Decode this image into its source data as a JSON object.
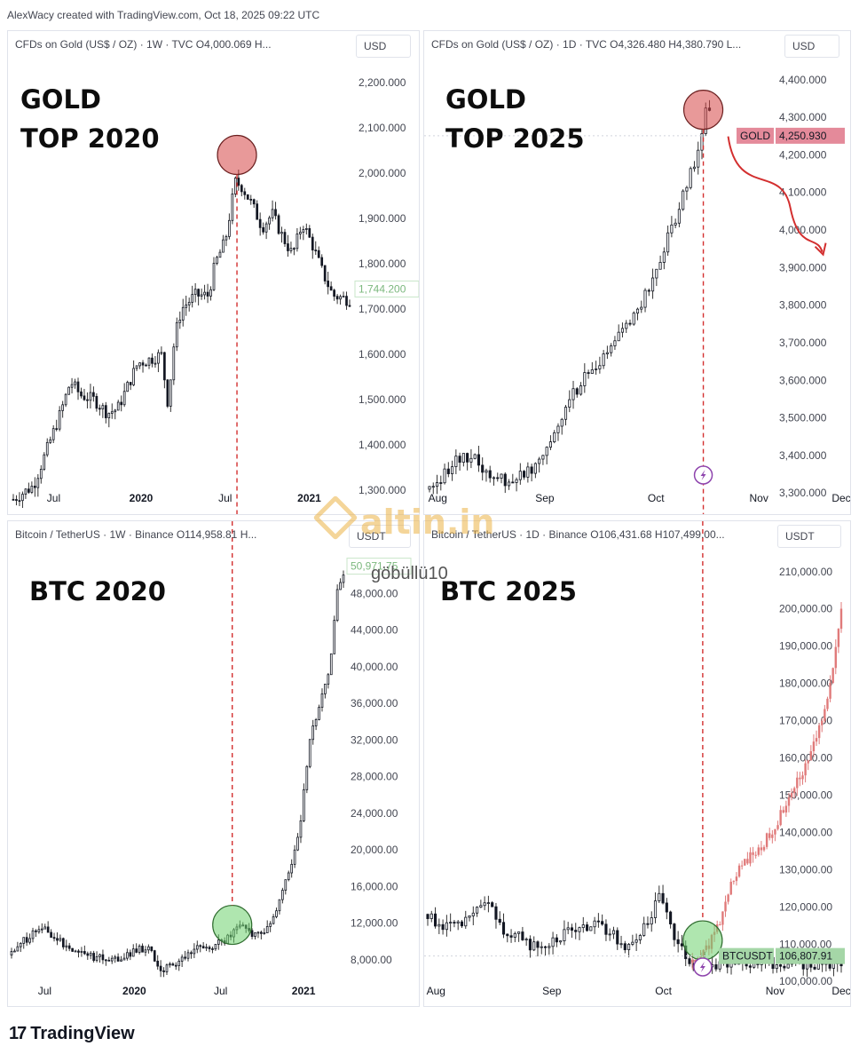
{
  "credit": "AlexWacy created with TradingView.com, Oct 18, 2025 09:22 UTC",
  "brand": {
    "logo_mark": "17",
    "name": "TradingView"
  },
  "watermark": {
    "name": "altin.in",
    "sub": "göbüllü10"
  },
  "colors": {
    "up": "#131722",
    "wick": "#333333",
    "proj": "#e07a7a",
    "dashed": "#d32f2f",
    "red_circle": "rgba(214,70,70,0.55)",
    "green_circle": "rgba(110,210,110,0.55)",
    "gold_tag": "#e48a9a",
    "btc_tag": "#a5d6a7",
    "last_tag": "#c8e6c9"
  },
  "chart_data": [
    {
      "id": "gold2020",
      "type": "candlestick",
      "header": "CFDs on Gold (US$ / OZ) · 1W · TVC  O4,000.069  H...",
      "unit": "USD",
      "annotation": [
        "GOLD",
        "TOP 2020"
      ],
      "y_ticks": [
        "2,200.000",
        "2,100.000",
        "2,000.000",
        "1,900.000",
        "1,800.000",
        "1,700.000",
        "1,600.000",
        "1,500.000",
        "1,400.000",
        "1,300.000"
      ],
      "y_tick_values": [
        2200,
        2100,
        2000,
        1900,
        1800,
        1700,
        1600,
        1500,
        1400,
        1300
      ],
      "ylim": [
        1265,
        2235
      ],
      "last_price_label": "1,744.200",
      "last_price": 1744.2,
      "x_ticks": [
        {
          "label": "Jul",
          "t": 0.12
        },
        {
          "label": "2020",
          "t": 0.38,
          "bold": true
        },
        {
          "label": "Jul",
          "t": 0.63
        },
        {
          "label": "2021",
          "t": 0.88,
          "bold": true
        }
      ],
      "path": [
        [
          0,
          1280
        ],
        [
          0.06,
          1310
        ],
        [
          0.1,
          1390
        ],
        [
          0.14,
          1470
        ],
        [
          0.17,
          1540
        ],
        [
          0.2,
          1510
        ],
        [
          0.24,
          1500
        ],
        [
          0.28,
          1470
        ],
        [
          0.31,
          1480
        ],
        [
          0.34,
          1530
        ],
        [
          0.37,
          1580
        ],
        [
          0.41,
          1590
        ],
        [
          0.44,
          1600
        ],
        [
          0.46,
          1490
        ],
        [
          0.48,
          1640
        ],
        [
          0.5,
          1700
        ],
        [
          0.54,
          1730
        ],
        [
          0.58,
          1730
        ],
        [
          0.6,
          1800
        ],
        [
          0.63,
          1850
        ],
        [
          0.66,
          1980
        ],
        [
          0.68,
          1970
        ],
        [
          0.71,
          1930
        ],
        [
          0.74,
          1880
        ],
        [
          0.77,
          1910
        ],
        [
          0.8,
          1860
        ],
        [
          0.83,
          1820
        ],
        [
          0.86,
          1890
        ],
        [
          0.89,
          1840
        ],
        [
          0.92,
          1780
        ],
        [
          0.95,
          1730
        ],
        [
          1.0,
          1720
        ]
      ],
      "peak_t": 0.665,
      "peak_price": 2040
    },
    {
      "id": "gold2025",
      "type": "candlestick",
      "header": "CFDs on Gold (US$ / OZ) · 1D · TVC  O4,326.480  H4,380.790  L...",
      "unit": "USD",
      "annotation": [
        "GOLD",
        "TOP 2025"
      ],
      "y_ticks": [
        "4,400.000",
        "4,300.000",
        "4,200.000",
        "4,100.000",
        "4,000.000",
        "3,900.000",
        "3,800.000",
        "3,700.000",
        "3,600.000",
        "3,500.000",
        "3,400.000",
        "3,300.000"
      ],
      "y_tick_values": [
        4400,
        4300,
        4200,
        4100,
        4000,
        3900,
        3800,
        3700,
        3600,
        3500,
        3400,
        3300
      ],
      "ylim": [
        3265,
        4435
      ],
      "tag": {
        "symbol": "GOLD",
        "price_label": "4,250.930",
        "price": 4250.93
      },
      "x_ticks": [
        {
          "label": "Aug",
          "t": 0.02
        },
        {
          "label": "Sep",
          "t": 0.28
        },
        {
          "label": "Oct",
          "t": 0.55
        },
        {
          "label": "Nov",
          "t": 0.8
        },
        {
          "label": "Dec",
          "t": 1.0
        }
      ],
      "path": [
        [
          0,
          3310
        ],
        [
          0.06,
          3380
        ],
        [
          0.1,
          3400
        ],
        [
          0.14,
          3350
        ],
        [
          0.2,
          3330
        ],
        [
          0.25,
          3370
        ],
        [
          0.3,
          3450
        ],
        [
          0.33,
          3530
        ],
        [
          0.37,
          3600
        ],
        [
          0.42,
          3650
        ],
        [
          0.46,
          3720
        ],
        [
          0.5,
          3780
        ],
        [
          0.54,
          3860
        ],
        [
          0.58,
          3980
        ],
        [
          0.62,
          4100
        ],
        [
          0.65,
          4200
        ],
        [
          0.67,
          4320
        ]
      ],
      "extent_t": 0.68,
      "peak_t": 0.665,
      "peak_price": 4320
    },
    {
      "id": "btc2020",
      "type": "candlestick",
      "header": "Bitcoin / TetherUS · 1W · Binance  O114,958.81  H...",
      "unit": "USDT",
      "annotation": [
        "BTC 2020"
      ],
      "y_ticks": [
        "48,000.00",
        "44,000.00",
        "40,000.00",
        "36,000.00",
        "32,000.00",
        "28,000.00",
        "24,000.00",
        "20,000.00",
        "16,000.00",
        "12,000.00",
        "8,000.00"
      ],
      "y_tick_values": [
        48000,
        44000,
        40000,
        36000,
        32000,
        28000,
        24000,
        20000,
        16000,
        12000,
        8000
      ],
      "ylim": [
        4000,
        52000
      ],
      "last_price_label": "50,971.75",
      "last_price": 50971.75,
      "x_ticks": [
        {
          "label": "Jul",
          "t": 0.1
        },
        {
          "label": "2020",
          "t": 0.37,
          "bold": true
        },
        {
          "label": "Jul",
          "t": 0.63
        },
        {
          "label": "2021",
          "t": 0.88,
          "bold": true
        }
      ],
      "path": [
        [
          0,
          8500
        ],
        [
          0.05,
          10500
        ],
        [
          0.1,
          11500
        ],
        [
          0.14,
          10000
        ],
        [
          0.2,
          9000
        ],
        [
          0.26,
          8200
        ],
        [
          0.31,
          8000
        ],
        [
          0.36,
          8700
        ],
        [
          0.41,
          9500
        ],
        [
          0.45,
          6500
        ],
        [
          0.5,
          7800
        ],
        [
          0.55,
          9000
        ],
        [
          0.6,
          9500
        ],
        [
          0.65,
          10200
        ],
        [
          0.69,
          11700
        ],
        [
          0.73,
          10700
        ],
        [
          0.77,
          11300
        ],
        [
          0.8,
          13500
        ],
        [
          0.84,
          18000
        ],
        [
          0.87,
          23000
        ],
        [
          0.9,
          32000
        ],
        [
          0.93,
          36000
        ],
        [
          0.96,
          40000
        ],
        [
          0.98,
          48000
        ],
        [
          1.0,
          50000
        ]
      ],
      "peak_t": 0.665,
      "peak_price": 11800
    },
    {
      "id": "btc2025",
      "type": "candlestick",
      "header": "Bitcoin / TetherUS · 1D · Binance  O106,431.68  H107,499.00...",
      "unit": "USDT",
      "annotation": [
        "BTC 2025"
      ],
      "y_ticks": [
        "210,000.00",
        "200,000.00",
        "190,000.00",
        "180,000.00",
        "170,000.00",
        "160,000.00",
        "150,000.00",
        "140,000.00",
        "130,000.00",
        "120,000.00",
        "110,000.00",
        "100,000.00"
      ],
      "y_tick_values": [
        210000,
        200000,
        190000,
        180000,
        170000,
        160000,
        150000,
        140000,
        130000,
        120000,
        110000,
        100000
      ],
      "ylim": [
        96000,
        214000
      ],
      "tag": {
        "symbol": "BTCUSDT",
        "price_label": "106,807.91",
        "price": 106807.91
      },
      "x_ticks": [
        {
          "label": "Aug",
          "t": 0.02
        },
        {
          "label": "Sep",
          "t": 0.3
        },
        {
          "label": "Oct",
          "t": 0.57
        },
        {
          "label": "Nov",
          "t": 0.84
        },
        {
          "label": "Dec",
          "t": 1.0
        }
      ],
      "path": [
        [
          0,
          118000
        ],
        [
          0.05,
          114000
        ],
        [
          0.1,
          116000
        ],
        [
          0.14,
          122000
        ],
        [
          0.18,
          114000
        ],
        [
          0.23,
          111000
        ],
        [
          0.27,
          109000
        ],
        [
          0.32,
          112000
        ],
        [
          0.36,
          114000
        ],
        [
          0.41,
          115000
        ],
        [
          0.45,
          112000
        ],
        [
          0.49,
          109000
        ],
        [
          0.53,
          116000
        ],
        [
          0.56,
          123000
        ],
        [
          0.58,
          120000
        ],
        [
          0.6,
          110000
        ],
        [
          0.63,
          106000
        ],
        [
          0.64,
          105000
        ]
      ],
      "projection": [
        [
          0.64,
          105000
        ],
        [
          0.67,
          108000
        ],
        [
          0.7,
          114000
        ],
        [
          0.72,
          122000
        ],
        [
          0.75,
          130000
        ],
        [
          0.78,
          134000
        ],
        [
          0.81,
          137000
        ],
        [
          0.84,
          141000
        ],
        [
          0.87,
          149000
        ],
        [
          0.9,
          155000
        ],
        [
          0.93,
          163000
        ],
        [
          0.96,
          172000
        ],
        [
          0.98,
          185000
        ],
        [
          1.0,
          200000
        ]
      ],
      "extent_t": 1.0,
      "peak_t": 0.665,
      "peak_price": 111000
    }
  ]
}
